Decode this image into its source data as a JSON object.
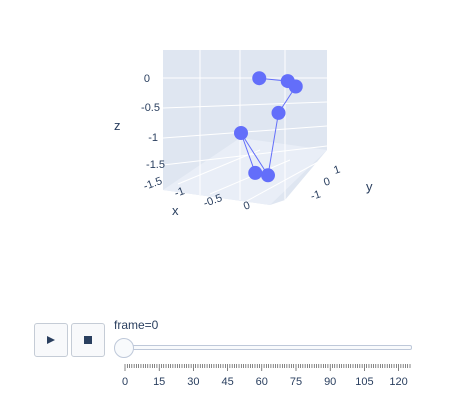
{
  "chart_data": {
    "type": "scatter3d",
    "mode": "lines+markers",
    "marker_color": "#636efa",
    "line_color": "#636efa",
    "scene_bg": "#e5ecf6",
    "axes": {
      "x": {
        "label": "x",
        "ticks": [
          "-1.5",
          "-1",
          "-0.5",
          "0"
        ]
      },
      "y": {
        "label": "y",
        "ticks": [
          "-1",
          "0",
          "1"
        ]
      },
      "z": {
        "label": "z",
        "ticks": [
          "-1.5",
          "-1",
          "-0.5",
          "0"
        ]
      }
    },
    "points": [
      {
        "x": -0.35,
        "y": -0.05,
        "z": 0.08
      },
      {
        "x": 0.1,
        "y": 0.25,
        "z": 0.05
      },
      {
        "x": 0.3,
        "y": 0.25,
        "z": -0.05
      },
      {
        "x": 0.0,
        "y": 0.1,
        "z": -0.45
      },
      {
        "x": 0.0,
        "y": -0.2,
        "z": -1.45
      },
      {
        "x": -0.5,
        "y": -0.4,
        "z": -0.8
      },
      {
        "x": -0.1,
        "y": -0.45,
        "z": -1.45
      }
    ]
  },
  "animation": {
    "play_icon": "play-icon",
    "stop_icon": "stop-icon",
    "frame_label": "frame=0",
    "slider_value": 0,
    "slider_max": 125,
    "tick_labels": [
      "0",
      "15",
      "30",
      "45",
      "60",
      "75",
      "90",
      "105",
      "120"
    ]
  }
}
